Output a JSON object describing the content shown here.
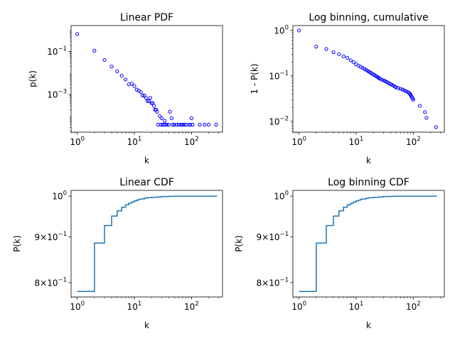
{
  "chart_data": [
    {
      "type": "scatter",
      "title": "Linear PDF",
      "xlabel": "k",
      "ylabel": "p(k)",
      "xscale": "log",
      "yscale": "log",
      "xlim": [
        0.78,
        350
      ],
      "ylim": [
        1.8e-05,
        1.6
      ],
      "x_ticks": [
        {
          "value": 1,
          "base": "10",
          "exp": "0"
        },
        {
          "value": 10,
          "base": "10",
          "exp": "1"
        },
        {
          "value": 100,
          "base": "10",
          "exp": "2"
        }
      ],
      "y_ticks": [
        {
          "value": 0.1,
          "base": "10",
          "exp": "−1"
        },
        {
          "value": 0.001,
          "base": "10",
          "exp": "−3"
        }
      ],
      "marker": "open-circle",
      "marker_color": "#0000ff",
      "series": [
        {
          "x": [
            1,
            2,
            3,
            4,
            5,
            6,
            7,
            8,
            9,
            10,
            11,
            12,
            13,
            14,
            15,
            16,
            17,
            18,
            19,
            20,
            21,
            22,
            23,
            24,
            25,
            26,
            28,
            29,
            30,
            31,
            33,
            34,
            35,
            37,
            40,
            42,
            45,
            47,
            50,
            55,
            60,
            65,
            70,
            75,
            80,
            90,
            95,
            100,
            105,
            140,
            170,
            200,
            270
          ],
          "y": [
            0.65,
            0.11,
            0.04,
            0.02,
            0.012,
            0.0075,
            0.005,
            0.003,
            0.0032,
            0.0025,
            0.0017,
            0.0015,
            0.0013,
            0.0009,
            0.0009,
            0.0007,
            0.0005,
            0.0005,
            0.0007,
            0.0004,
            0.0004,
            0.0003,
            0.0002,
            0.0002,
            0.00016,
            4e-05,
            0.0001,
            4e-05,
            8e-05,
            4e-05,
            4e-05,
            6e-05,
            4e-05,
            4e-05,
            4e-05,
            0.00016,
            8e-05,
            4e-05,
            4e-05,
            4e-05,
            4e-05,
            4e-05,
            4e-05,
            4e-05,
            4e-05,
            4e-05,
            4e-05,
            8e-05,
            4e-05,
            4e-05,
            4e-05,
            4e-05,
            4e-05
          ]
        }
      ]
    },
    {
      "type": "scatter",
      "title": "Log binning, cumulative",
      "xlabel": "k",
      "ylabel": "1 - P(k)",
      "xscale": "log",
      "yscale": "log",
      "xlim": [
        0.78,
        350
      ],
      "ylim": [
        0.0058,
        1.28
      ],
      "x_ticks": [
        {
          "value": 1,
          "base": "10",
          "exp": "0"
        },
        {
          "value": 10,
          "base": "10",
          "exp": "1"
        },
        {
          "value": 100,
          "base": "10",
          "exp": "2"
        }
      ],
      "y_ticks": [
        {
          "value": 1,
          "base": "10",
          "exp": "0"
        },
        {
          "value": 0.1,
          "base": "10",
          "exp": "−1"
        },
        {
          "value": 0.01,
          "base": "10",
          "exp": "−2"
        }
      ],
      "marker": "open-circle",
      "marker_color": "#0000ff",
      "series": [
        {
          "x": [
            1,
            2,
            3,
            4,
            5,
            6,
            7,
            8,
            9,
            10,
            11,
            12,
            13,
            14,
            15,
            16,
            17,
            18,
            19,
            20,
            21,
            22,
            23,
            24,
            25,
            26,
            28,
            30,
            32,
            34,
            36,
            38,
            40,
            42,
            45,
            48,
            50,
            55,
            60,
            65,
            70,
            75,
            80,
            85,
            88,
            90,
            92,
            95,
            98,
            100,
            130,
            160,
            170,
            250
          ],
          "y": [
            1.0,
            0.44,
            0.39,
            0.33,
            0.3,
            0.27,
            0.25,
            0.22,
            0.2,
            0.18,
            0.168,
            0.158,
            0.15,
            0.142,
            0.135,
            0.128,
            0.122,
            0.117,
            0.112,
            0.108,
            0.104,
            0.1,
            0.097,
            0.093,
            0.09,
            0.087,
            0.083,
            0.08,
            0.077,
            0.074,
            0.071,
            0.068,
            0.066,
            0.064,
            0.061,
            0.058,
            0.056,
            0.054,
            0.052,
            0.05,
            0.048,
            0.046,
            0.044,
            0.042,
            0.04,
            0.038,
            0.036,
            0.034,
            0.032,
            0.03,
            0.022,
            0.016,
            0.012,
            0.0075
          ]
        }
      ]
    },
    {
      "type": "line",
      "step": "post",
      "title": "Linear CDF",
      "xlabel": "k",
      "ylabel": "P(k)",
      "xscale": "log",
      "yscale": "log",
      "xlim": [
        0.78,
        350
      ],
      "ylim": [
        0.771,
        1.015
      ],
      "x_ticks": [
        {
          "value": 1,
          "base": "10",
          "exp": "0"
        },
        {
          "value": 10,
          "base": "10",
          "exp": "1"
        },
        {
          "value": 100,
          "base": "10",
          "exp": "2"
        }
      ],
      "y_ticks": [
        {
          "value": 1.0,
          "mant": "",
          "base": "10",
          "exp": "0"
        },
        {
          "value": 0.9,
          "mant": "9×",
          "base": "10",
          "exp": "−1"
        },
        {
          "value": 0.8,
          "mant": "8×",
          "base": "10",
          "exp": "−1"
        }
      ],
      "line_color": "#1f77b4",
      "series": [
        {
          "x": [
            1,
            2,
            3,
            4,
            5,
            6,
            7,
            8,
            9,
            10,
            11,
            12,
            13,
            15,
            17,
            20,
            25,
            30,
            40,
            50,
            280
          ],
          "y": [
            0.782,
            0.886,
            0.927,
            0.95,
            0.963,
            0.972,
            0.978,
            0.982,
            0.985,
            0.988,
            0.99,
            0.992,
            0.993,
            0.995,
            0.996,
            0.997,
            0.998,
            0.999,
            0.9995,
            1.0,
            1.0
          ]
        }
      ]
    },
    {
      "type": "line",
      "step": "post",
      "title": "Log binning CDF",
      "xlabel": "k",
      "ylabel": "P(k)",
      "xscale": "log",
      "yscale": "log",
      "xlim": [
        0.78,
        350
      ],
      "ylim": [
        0.771,
        1.015
      ],
      "x_ticks": [
        {
          "value": 1,
          "base": "10",
          "exp": "0"
        },
        {
          "value": 10,
          "base": "10",
          "exp": "1"
        },
        {
          "value": 100,
          "base": "10",
          "exp": "2"
        }
      ],
      "y_ticks": [
        {
          "value": 1.0,
          "mant": "",
          "base": "10",
          "exp": "0"
        },
        {
          "value": 0.9,
          "mant": "9×",
          "base": "10",
          "exp": "−1"
        },
        {
          "value": 0.8,
          "mant": "8×",
          "base": "10",
          "exp": "−1"
        }
      ],
      "line_color": "#1f77b4",
      "series": [
        {
          "x": [
            1,
            2,
            3,
            4,
            5,
            6,
            7,
            8,
            9,
            10,
            11,
            12,
            13,
            15,
            17,
            20,
            25,
            30,
            40,
            50,
            260
          ],
          "y": [
            0.782,
            0.886,
            0.927,
            0.95,
            0.963,
            0.972,
            0.978,
            0.982,
            0.985,
            0.988,
            0.99,
            0.992,
            0.993,
            0.995,
            0.996,
            0.997,
            0.998,
            0.999,
            0.9995,
            1.0,
            1.0
          ]
        }
      ]
    }
  ]
}
